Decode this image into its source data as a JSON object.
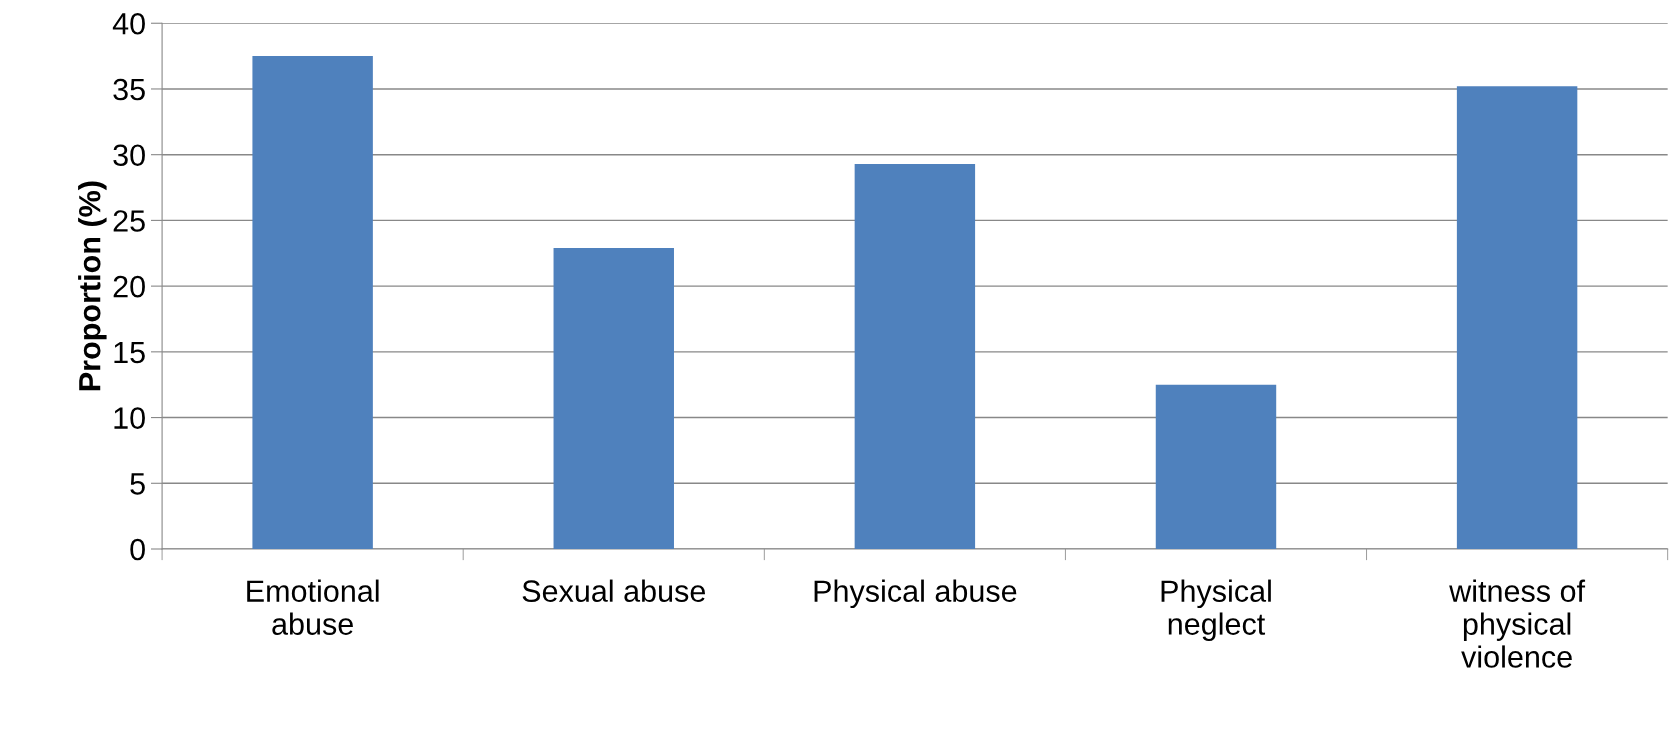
{
  "chart_data": {
    "type": "bar",
    "ylabel": "Proportion (%)",
    "categories": [
      "Emotional abuse",
      "Sexual abuse",
      "Physical abuse",
      "Physical neglect",
      "witness of physical violence"
    ],
    "values": [
      37.5,
      22.9,
      29.3,
      12.5,
      35.2
    ],
    "color": "#4f81bd",
    "ylim": [
      0,
      40
    ],
    "yticks": [
      0,
      5,
      10,
      15,
      20,
      25,
      30,
      35,
      40
    ],
    "grid": "y",
    "legend": false
  }
}
